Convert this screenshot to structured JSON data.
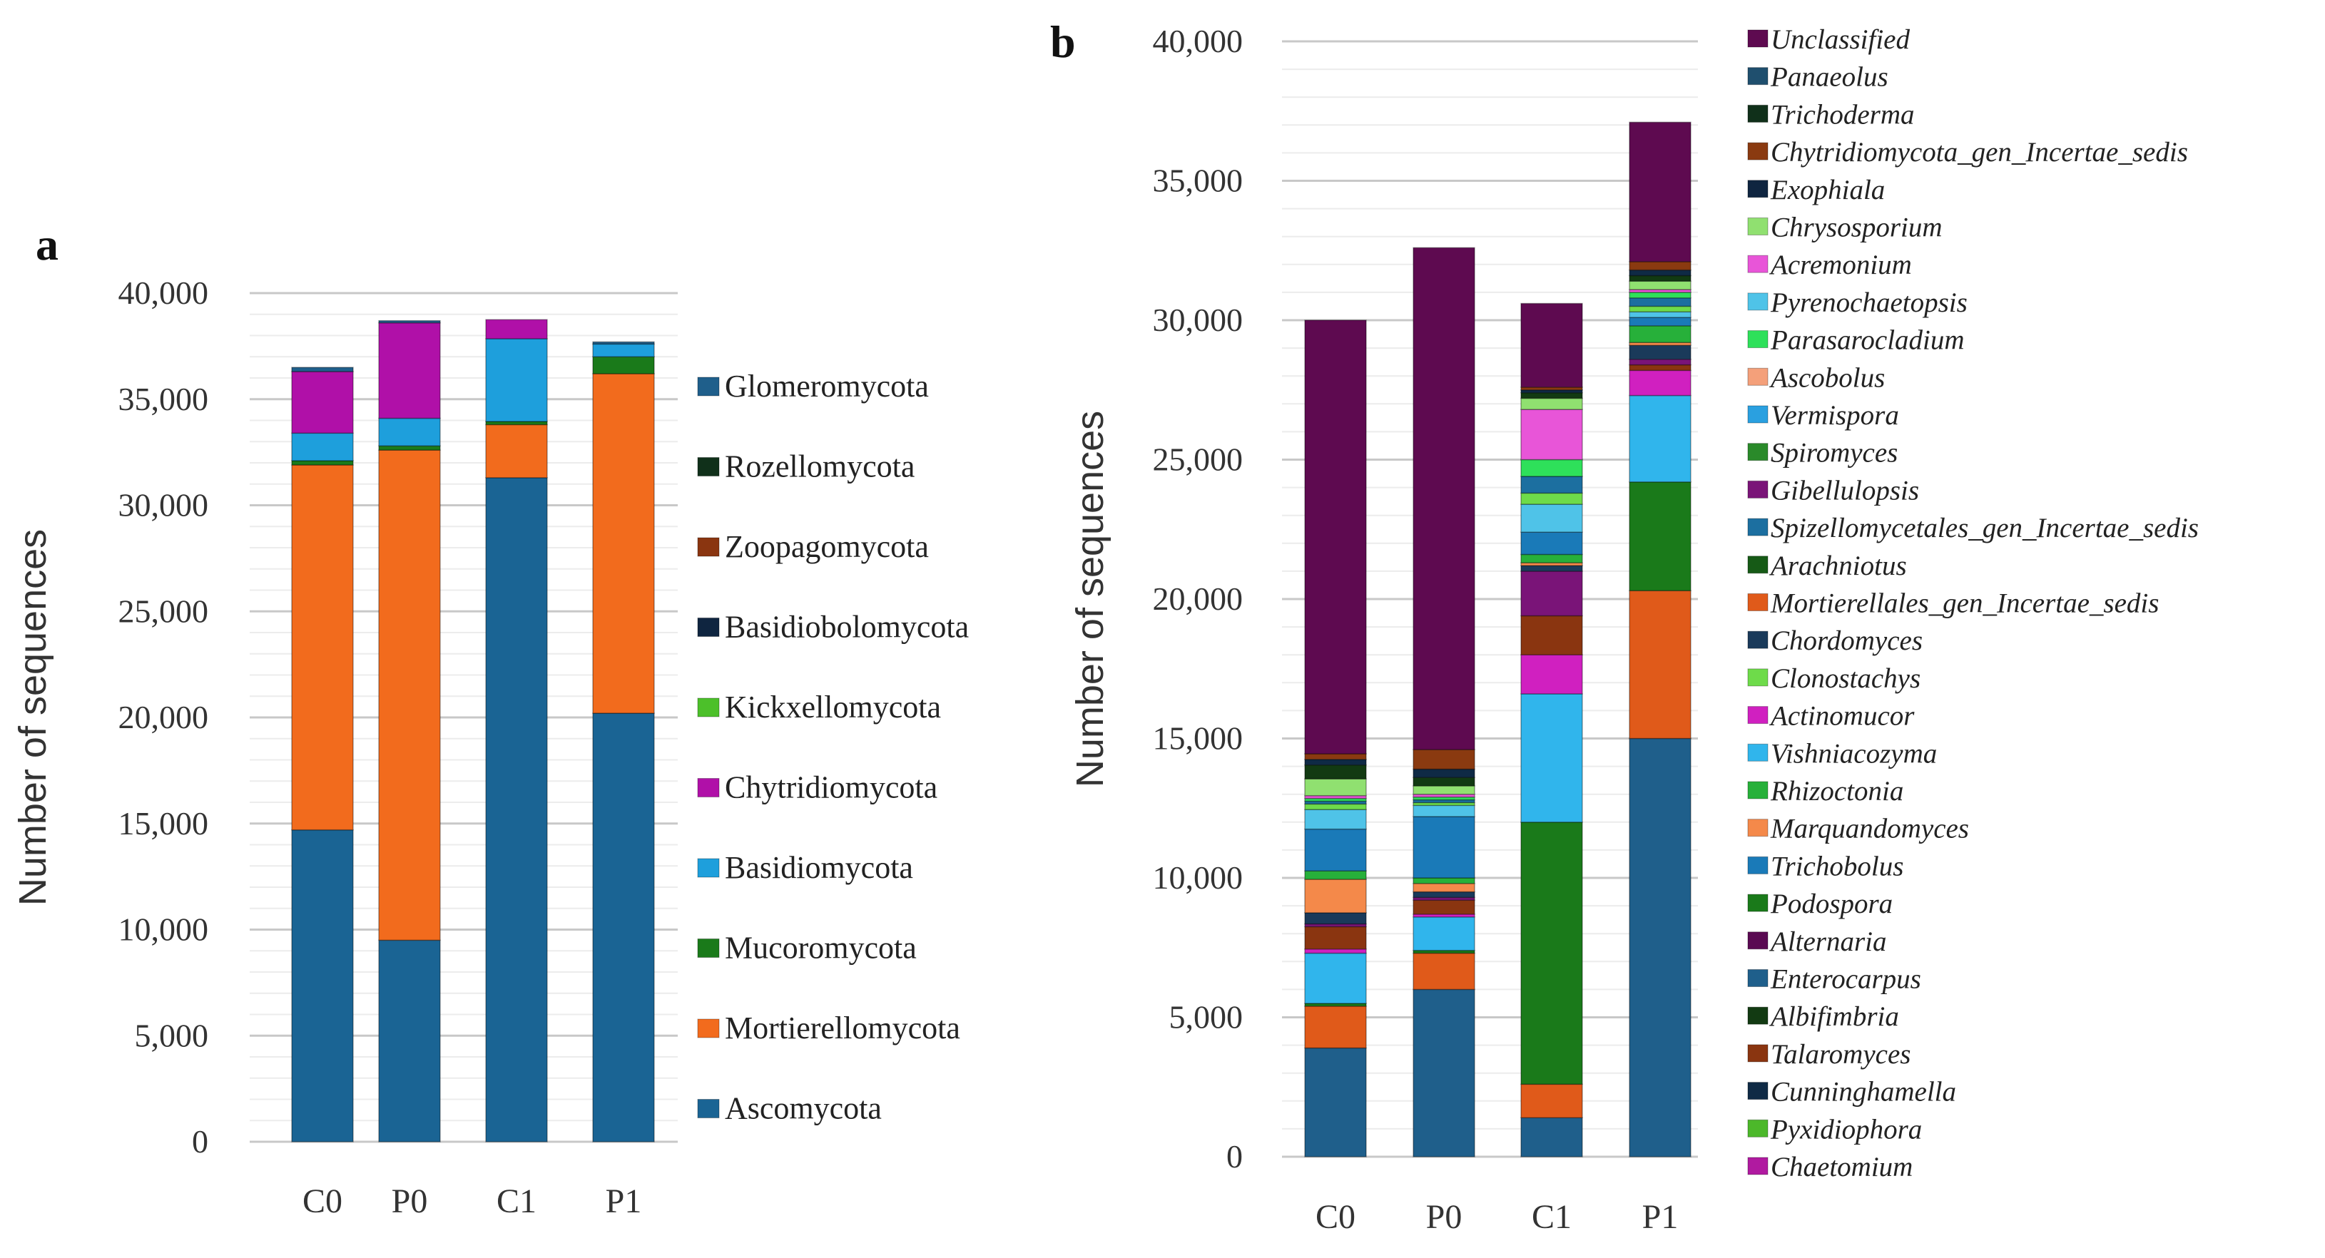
{
  "chart_data": [
    {
      "type": "bar",
      "stacked": true,
      "panel_label": "a",
      "title": "",
      "xlabel": "",
      "ylabel": "Number of sequences",
      "ylim": [
        0,
        40000
      ],
      "yticks": [
        "0",
        "5,000",
        "10,000",
        "15,000",
        "20,000",
        "25,000",
        "30,000",
        "35,000",
        "40,000"
      ],
      "grid": true,
      "legend_position": "right",
      "categories": [
        "C0",
        "P0",
        "C1",
        "P1"
      ],
      "legend": [
        {
          "name": "Glomeromycota",
          "color": "#1f5f8b"
        },
        {
          "name": "Rozellomycota",
          "color": "#10301a"
        },
        {
          "name": "Zoopagomycota",
          "color": "#8a3510"
        },
        {
          "name": "Basidiobolomycota",
          "color": "#0f2540"
        },
        {
          "name": "Kickxellomycota",
          "color": "#4cc02a"
        },
        {
          "name": "Chytridiomycota",
          "color": "#b010a8"
        },
        {
          "name": "Basidiomycota",
          "color": "#1e9fdc"
        },
        {
          "name": "Mucoromycota",
          "color": "#1a7a1a"
        },
        {
          "name": "Mortierellomycota",
          "color": "#f26b1d"
        },
        {
          "name": "Ascomycota",
          "color": "#1a6494"
        }
      ],
      "series": [
        {
          "name": "Ascomycota",
          "values": [
            14700,
            9500,
            31300,
            20200
          ]
        },
        {
          "name": "Mortierellomycota",
          "values": [
            17200,
            23100,
            2500,
            16000
          ]
        },
        {
          "name": "Mucoromycota",
          "values": [
            200,
            200,
            150,
            800
          ]
        },
        {
          "name": "Basidiomycota",
          "values": [
            1300,
            1300,
            3900,
            600
          ]
        },
        {
          "name": "Chytridiomycota",
          "values": [
            2900,
            4500,
            900,
            0
          ]
        },
        {
          "name": "Glomeromycota",
          "values": [
            200,
            100,
            0,
            100
          ]
        }
      ]
    },
    {
      "type": "bar",
      "stacked": true,
      "panel_label": "b",
      "title": "",
      "xlabel": "",
      "ylabel": "Number of sequences",
      "ylim": [
        0,
        40000
      ],
      "yticks": [
        "0",
        "5,000",
        "10,000",
        "15,000",
        "20,000",
        "25,000",
        "30,000",
        "35,000",
        "40,000"
      ],
      "grid": true,
      "legend_position": "right",
      "categories": [
        "C0",
        "P0",
        "C1",
        "P1"
      ],
      "legend": [
        {
          "name": "Unclassified",
          "color": "#5e0a50"
        },
        {
          "name": "Panaeolus",
          "color": "#1f4f6e"
        },
        {
          "name": "Trichoderma",
          "color": "#10301a"
        },
        {
          "name": "Chytridiomycota_gen_Incertae_sedis",
          "color": "#8a3a10"
        },
        {
          "name": "Exophiala",
          "color": "#0f2540"
        },
        {
          "name": "Chrysosporium",
          "color": "#90e070"
        },
        {
          "name": "Acremonium",
          "color": "#e855d8"
        },
        {
          "name": "Pyrenochaetopsis",
          "color": "#4fc3e8"
        },
        {
          "name": "Parasarocladium",
          "color": "#2ee05a"
        },
        {
          "name": "Ascobolus",
          "color": "#f4a07a"
        },
        {
          "name": "Vermispora",
          "color": "#2aa0e0"
        },
        {
          "name": "Spiromyces",
          "color": "#2a8a2a"
        },
        {
          "name": "Gibellulopsis",
          "color": "#7a1478"
        },
        {
          "name": "Spizellomycetales_gen_Incertae_sedis",
          "color": "#1c6fa0"
        },
        {
          "name": "Arachniotus",
          "color": "#165a16"
        },
        {
          "name": "Mortierellales_gen_Incertae_sedis",
          "color": "#e05a1a"
        },
        {
          "name": "Chordomyces",
          "color": "#1a3a5a"
        },
        {
          "name": "Clonostachys",
          "color": "#6edb4a"
        },
        {
          "name": "Actinomucor",
          "color": "#d020c0"
        },
        {
          "name": "Vishniacozyma",
          "color": "#30b5ec"
        },
        {
          "name": "Rhizoctonia",
          "color": "#27b03a"
        },
        {
          "name": "Marquandomyces",
          "color": "#f4894a"
        },
        {
          "name": "Trichobolus",
          "color": "#1a7ab8"
        },
        {
          "name": "Podospora",
          "color": "#1a7a1a"
        },
        {
          "name": "Alternaria",
          "color": "#5a0a52"
        },
        {
          "name": "Enterocarpus",
          "color": "#1f5f8b"
        },
        {
          "name": "Albifimbria",
          "color": "#123a12"
        },
        {
          "name": "Talaromyces",
          "color": "#8a3510"
        },
        {
          "name": "Cunninghamella",
          "color": "#0f2a45"
        },
        {
          "name": "Pyxidiophora",
          "color": "#4cb82a"
        },
        {
          "name": "Chaetomium",
          "color": "#b01aa0"
        }
      ],
      "series": [
        {
          "name": "Enterocarpus",
          "values": [
            3900,
            6000,
            1400,
            15000
          ]
        },
        {
          "name": "Mortierellales_gen_Incertae_sedis",
          "values": [
            1500,
            1300,
            1200,
            5300
          ]
        },
        {
          "name": "Podospora",
          "values": [
            100,
            100,
            9400,
            3900
          ]
        },
        {
          "name": "Vishniacozyma",
          "values": [
            1800,
            1200,
            4600,
            3100
          ]
        },
        {
          "name": "Actinomucor",
          "values": [
            150,
            100,
            1400,
            900
          ]
        },
        {
          "name": "Talaromyces",
          "values": [
            800,
            500,
            1400,
            200
          ]
        },
        {
          "name": "Gibellulopsis",
          "values": [
            100,
            100,
            1600,
            200
          ]
        },
        {
          "name": "Chordomyces",
          "values": [
            400,
            200,
            200,
            500
          ]
        },
        {
          "name": "Marquandomyces",
          "values": [
            1200,
            300,
            100,
            100
          ]
        },
        {
          "name": "Rhizoctonia",
          "values": [
            300,
            200,
            300,
            600
          ]
        },
        {
          "name": "Trichobolus",
          "values": [
            1500,
            2200,
            800,
            300
          ]
        },
        {
          "name": "Pyrenochaetopsis",
          "values": [
            700,
            400,
            1000,
            200
          ]
        },
        {
          "name": "Clonostachys",
          "values": [
            200,
            100,
            400,
            200
          ]
        },
        {
          "name": "Spizellomycetales_gen_Incertae_sedis",
          "values": [
            100,
            100,
            600,
            300
          ]
        },
        {
          "name": "Parasarocladium",
          "values": [
            100,
            100,
            600,
            200
          ]
        },
        {
          "name": "Acremonium",
          "values": [
            100,
            100,
            1800,
            100
          ]
        },
        {
          "name": "Chrysosporium",
          "values": [
            600,
            300,
            400,
            300
          ]
        },
        {
          "name": "Albifimbria",
          "values": [
            500,
            300,
            200,
            200
          ]
        },
        {
          "name": "Cunninghamella",
          "values": [
            200,
            300,
            100,
            200
          ]
        },
        {
          "name": "Chytridiomycota_gen_Incertae_sedis",
          "values": [
            200,
            700,
            100,
            300
          ]
        },
        {
          "name": "Unclassified",
          "values": [
            15550,
            18000,
            3000,
            5000
          ]
        }
      ]
    }
  ]
}
